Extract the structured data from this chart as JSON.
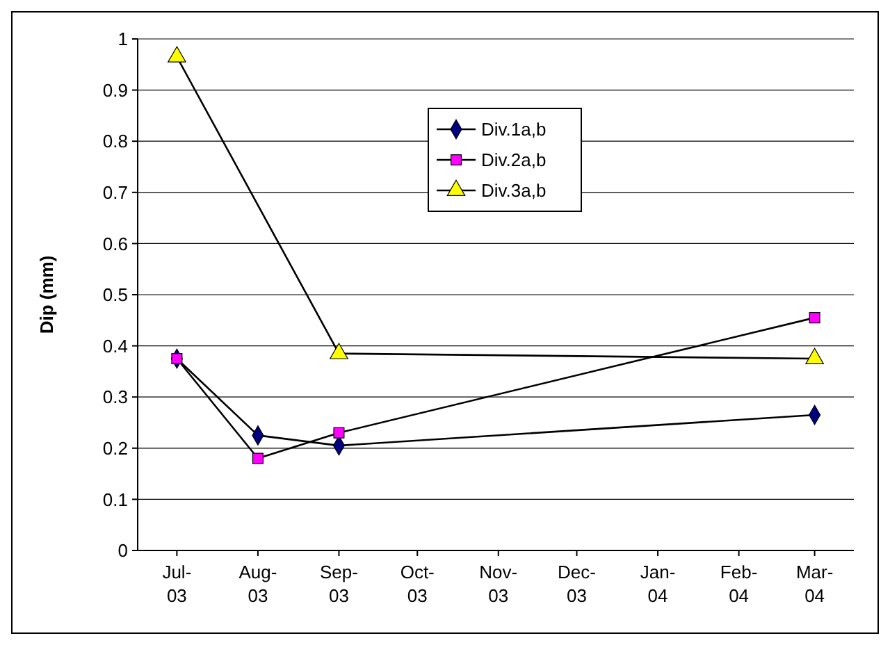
{
  "chart_data": {
    "type": "line",
    "ylabel": "Dip (mm)",
    "xlim": [
      "2003-06-16",
      "2004-03-16"
    ],
    "xticks": [
      {
        "value": "2003-07",
        "label": "Jul-03"
      },
      {
        "value": "2003-08",
        "label": "Aug-03"
      },
      {
        "value": "2003-09",
        "label": "Sep-03"
      },
      {
        "value": "2003-10",
        "label": "Oct-03"
      },
      {
        "value": "2003-11",
        "label": "Nov-03"
      },
      {
        "value": "2003-12",
        "label": "Dec-03"
      },
      {
        "value": "2004-01",
        "label": "Jan-04"
      },
      {
        "value": "2004-02",
        "label": "Feb-04"
      },
      {
        "value": "2004-03",
        "label": "Mar-04"
      }
    ],
    "ylim": [
      0,
      1
    ],
    "yticks": [
      0,
      0.1,
      0.2,
      0.3,
      0.4,
      0.5,
      0.6,
      0.7,
      0.8,
      0.9,
      1
    ],
    "grid": "y",
    "legend": "top",
    "line_style": "solid",
    "series": [
      {
        "name": "Div.1a,b",
        "color": "#000080",
        "marker": "diamond",
        "x": [
          "2003-07",
          "2003-08",
          "2003-09",
          "2004-03"
        ],
        "values": [
          0.375,
          0.225,
          0.205,
          0.265
        ]
      },
      {
        "name": "Div.2a,b",
        "color": "#ff00ff",
        "marker": "square",
        "x": [
          "2003-07",
          "2003-08",
          "2003-09",
          "2004-03"
        ],
        "values": [
          0.375,
          0.18,
          0.23,
          0.455
        ]
      },
      {
        "name": "Div.3a,b",
        "color": "#ffff00",
        "marker": "triangle",
        "x": [
          "2003-07",
          "2003-09",
          "2004-03"
        ],
        "values": [
          0.965,
          0.385,
          0.375
        ]
      }
    ]
  }
}
